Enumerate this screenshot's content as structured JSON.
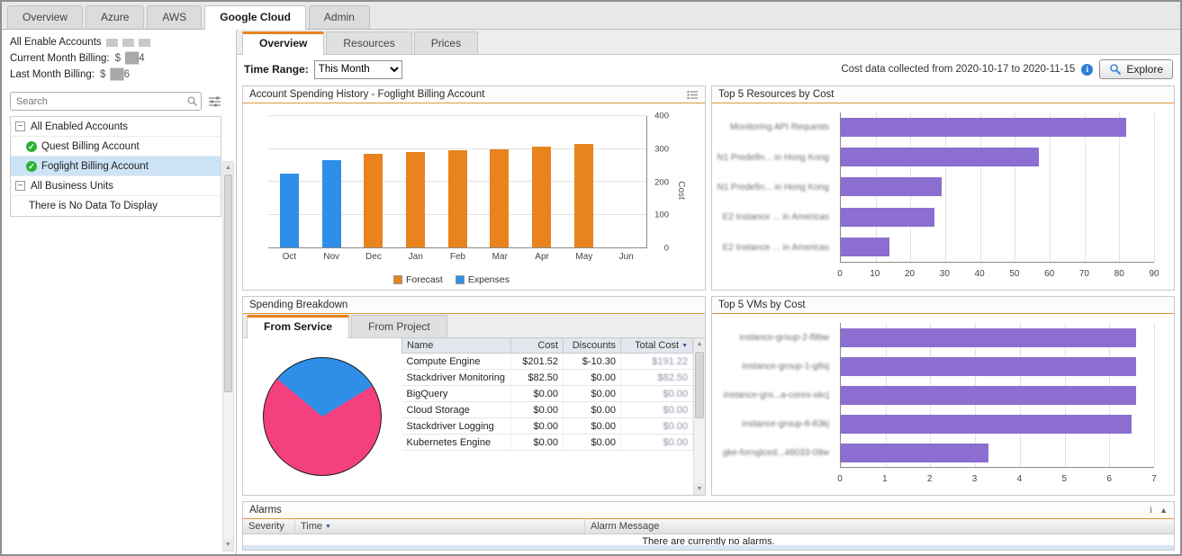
{
  "icons": {
    "tree_collapse": "−",
    "check": "✓",
    "sort_desc": "▼",
    "info": "i",
    "scroll_up": "▲",
    "scroll_down": "▼",
    "collapse_up": "▲",
    "alarms_info": "i"
  },
  "top_tabs": [
    {
      "label": "Overview",
      "active": false
    },
    {
      "label": "Azure",
      "active": false
    },
    {
      "label": "AWS",
      "active": false
    },
    {
      "label": "Google Cloud",
      "active": true
    },
    {
      "label": "Admin",
      "active": false
    }
  ],
  "sidebar": {
    "summary": {
      "accounts_label": "All Enable Accounts",
      "current_label": "Current Month Billing:",
      "current_prefix": "$",
      "current_masked": "██",
      "current_suffix": "4",
      "last_label": "Last Month Billing:",
      "last_prefix": "$",
      "last_masked": "██",
      "last_suffix": "6"
    },
    "search_placeholder": "Search",
    "tree": [
      {
        "label": "All Enabled Accounts",
        "type": "group"
      },
      {
        "label": "Quest Billing Account",
        "type": "account"
      },
      {
        "label": "Foglight Billing Account",
        "type": "account",
        "selected": true
      },
      {
        "label": "All Business Units",
        "type": "group"
      },
      {
        "label": "There is No Data To Display",
        "type": "empty"
      }
    ]
  },
  "subtabs": [
    {
      "label": "Overview",
      "active": true
    },
    {
      "label": "Resources",
      "active": false
    },
    {
      "label": "Prices",
      "active": false
    }
  ],
  "toolbar": {
    "time_range_label": "Time Range:",
    "time_range_value": "This Month",
    "collection_note": "Cost data collected from 2020-10-17 to 2020-11-15",
    "explore_label": "Explore"
  },
  "panels": {
    "spending_history_title": "Account Spending History - Foglight Billing Account",
    "top_resources_title": "Top 5 Resources by Cost",
    "spending_breakdown_title": "Spending Breakdown",
    "breakdown_tabs": [
      {
        "label": "From Service",
        "active": true
      },
      {
        "label": "From Project",
        "active": false
      }
    ],
    "top_vms_title": "Top 5 VMs by Cost",
    "alarms_title": "Alarms",
    "alarms_headers": [
      "Severity",
      "Time",
      "Alarm Message"
    ],
    "alarms_empty": "There are currently no alarms."
  },
  "service_table": {
    "headers": [
      "Name",
      "Cost",
      "Discounts",
      "Total Cost"
    ],
    "rows": [
      {
        "name": "Compute Engine",
        "cost": "$201.52",
        "discounts": "$-10.30",
        "total": "$191.22"
      },
      {
        "name": "Stackdriver Monitoring",
        "cost": "$82.50",
        "discounts": "$0.00",
        "total": "$82.50"
      },
      {
        "name": "BigQuery",
        "cost": "$0.00",
        "discounts": "$0.00",
        "total": "$0.00"
      },
      {
        "name": "Cloud Storage",
        "cost": "$0.00",
        "discounts": "$0.00",
        "total": "$0.00"
      },
      {
        "name": "Stackdriver Logging",
        "cost": "$0.00",
        "discounts": "$0.00",
        "total": "$0.00"
      },
      {
        "name": "Kubernetes Engine",
        "cost": "$0.00",
        "discounts": "$0.00",
        "total": "$0.00"
      }
    ]
  },
  "chart_data": [
    {
      "type": "bar",
      "title": "Account Spending History - Foglight Billing Account",
      "categories": [
        "Oct",
        "Nov",
        "Dec",
        "Jan",
        "Feb",
        "Mar",
        "Apr",
        "May",
        "Jun"
      ],
      "series": [
        {
          "name": "Expenses",
          "color": "#2f8fe8",
          "values": [
            225,
            265,
            null,
            null,
            null,
            null,
            null,
            null,
            null
          ]
        },
        {
          "name": "Forecast",
          "color": "#e8831d",
          "values": [
            null,
            null,
            285,
            290,
            295,
            300,
            308,
            315,
            null
          ]
        }
      ],
      "ylabel": "Cost",
      "ylim": [
        0,
        400
      ],
      "yticks": [
        0,
        100,
        200,
        300,
        400
      ],
      "legend": [
        {
          "label": "Forecast",
          "color": "#e8831d"
        },
        {
          "label": "Expenses",
          "color": "#2f8fe8"
        }
      ]
    },
    {
      "type": "bar",
      "orientation": "horizontal",
      "title": "Top 5 Resources by Cost",
      "categories": [
        "Monitoring API Requests",
        "N1 Predefin... in Hong Kong",
        "N1 Predefin... in Hong Kong",
        "E2 Instance ... in Americas",
        "E2 Instance ... in Americas"
      ],
      "values": [
        82,
        57,
        29,
        27,
        14
      ],
      "xlim": [
        0,
        90
      ],
      "xticks": [
        0,
        10,
        20,
        30,
        40,
        50,
        60,
        70,
        80,
        90
      ],
      "bar_color": "#8b6ecf",
      "labels_blurred": true
    },
    {
      "type": "pie",
      "title": "Spending Breakdown - From Service",
      "slices": [
        {
          "label": "Stackdriver Monitoring",
          "value": 82.5,
          "color": "#2f8fe8"
        },
        {
          "label": "Compute Engine",
          "value": 191.22,
          "color": "#f4407e"
        }
      ],
      "start_angle": -50
    },
    {
      "type": "bar",
      "orientation": "horizontal",
      "title": "Top 5 VMs by Cost",
      "categories": [
        "instance-group-2-f9bw",
        "instance-group-1-g8sj",
        "instance-gro...a-cores-skcj",
        "instance-group-8-83kj",
        "gke-forngiced...46033-09w"
      ],
      "values": [
        6.6,
        6.6,
        6.6,
        6.5,
        3.3
      ],
      "xlim": [
        0,
        7
      ],
      "xticks": [
        0,
        1,
        2,
        3,
        4,
        5,
        6,
        7
      ],
      "bar_color": "#8b6ecf",
      "labels_blurred": true
    }
  ]
}
